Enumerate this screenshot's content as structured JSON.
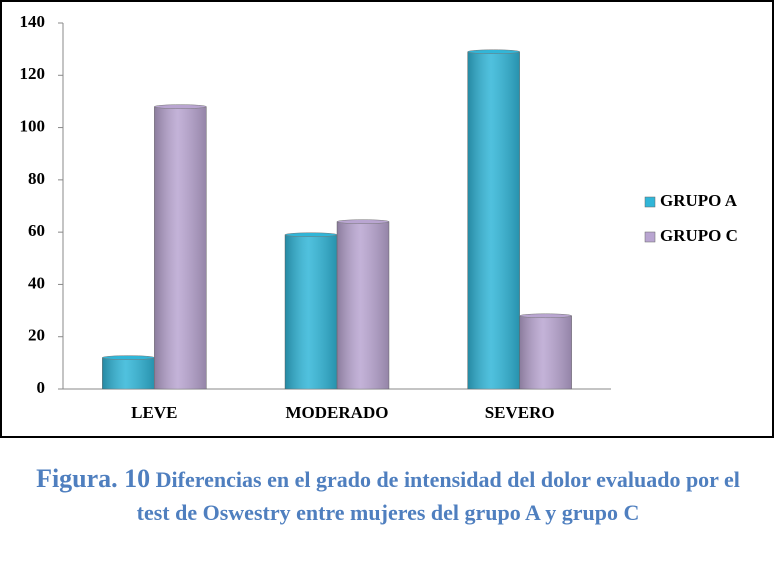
{
  "chart_data": {
    "type": "bar",
    "categories": [
      "LEVE",
      "MODERADO",
      "SEVERO"
    ],
    "series": [
      {
        "name": "GRUPO A",
        "color": "#31b6d8",
        "values": [
          12,
          59,
          129
        ]
      },
      {
        "name": "GRUPO C",
        "color": "#b9a5d1",
        "values": [
          108,
          64,
          28
        ]
      }
    ],
    "ylim": [
      0,
      140
    ],
    "yticks": [
      0,
      20,
      40,
      60,
      80,
      100,
      120,
      140
    ],
    "grid": false,
    "legend": "right"
  },
  "caption": {
    "label": "Figura. 10",
    "text": "Diferencias en el grado de intensidad del dolor evaluado por el test de Oswestry entre mujeres del grupo A y grupo C"
  }
}
